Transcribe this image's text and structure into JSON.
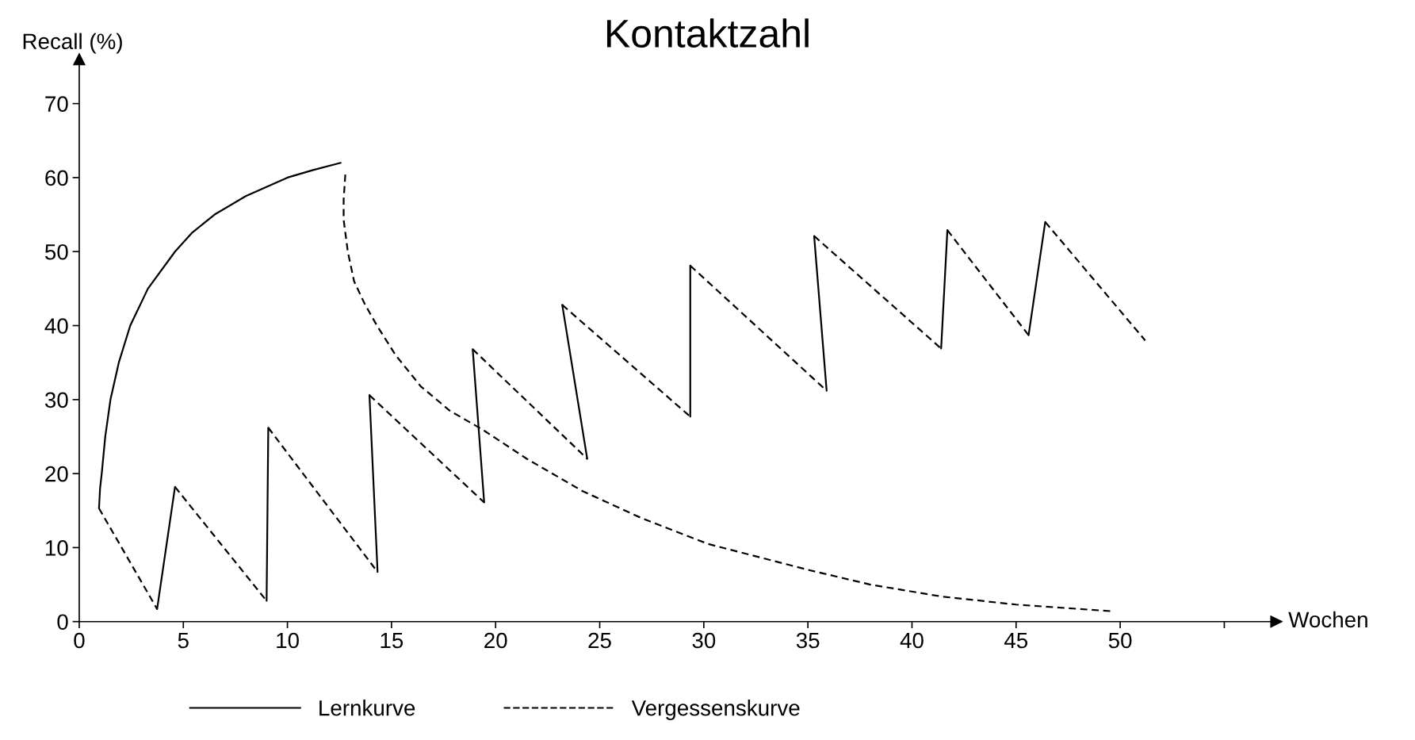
{
  "chart_data": {
    "type": "line",
    "title": "Kontaktzahl",
    "xlabel": "Wochen",
    "ylabel": "Recall (%)",
    "xlim": [
      0,
      57.5
    ],
    "ylim": [
      0,
      76
    ],
    "xticks": [
      0,
      5,
      10,
      15,
      20,
      25,
      30,
      35,
      40,
      45,
      50,
      {
        "value": 55,
        "label": null
      }
    ],
    "yticks": [
      0,
      10,
      20,
      30,
      40,
      50,
      60,
      70
    ],
    "grid": false,
    "legend": "bottom",
    "marker": "none",
    "series": [
      {
        "name": "Lernkurve",
        "color": "#000000",
        "line_style": "solid",
        "x": [
          0.95,
          1.0,
          1.08,
          1.25,
          1.5,
          1.9,
          2.45,
          3.3,
          4.6,
          5.4,
          6.5,
          8.0,
          10,
          11.2,
          12.56
        ],
        "values": [
          15.3,
          18,
          20,
          25,
          30,
          35,
          40,
          45,
          50,
          52.5,
          55,
          57.5,
          60,
          61,
          62
        ]
      },
      {
        "name": "Vergessenskurve",
        "color": "#000000",
        "line_style": "dashed",
        "x": [
          12.78,
          12.7,
          12.7,
          12.9,
          13.2,
          13.7,
          14.3,
          15.2,
          16.4,
          17.8,
          19.4,
          21.5,
          24.2,
          27,
          30.2,
          35,
          38,
          41.4,
          45,
          49.6
        ],
        "values": [
          60.4,
          57,
          54.3,
          50,
          46,
          43,
          40,
          36,
          31.8,
          28.5,
          25.9,
          22,
          17.6,
          14,
          10.5,
          7,
          5,
          3.4,
          2.3,
          1.4
        ]
      },
      {
        "color": "#000000",
        "line_style": "solid",
        "x": [
          3.74,
          4.6
        ],
        "values": [
          1.7,
          18.2
        ]
      },
      {
        "color": "#000000",
        "line_style": "solid",
        "x": [
          9.0,
          9.08
        ],
        "values": [
          2.8,
          26.2
        ]
      },
      {
        "color": "#000000",
        "line_style": "solid",
        "x": [
          14.33,
          13.94
        ],
        "values": [
          6.7,
          30.6
        ]
      },
      {
        "color": "#000000",
        "line_style": "solid",
        "x": [
          19.45,
          18.9
        ],
        "values": [
          16.1,
          36.8
        ]
      },
      {
        "color": "#000000",
        "line_style": "solid",
        "x": [
          24.4,
          23.2
        ],
        "values": [
          22,
          42.8
        ]
      },
      {
        "color": "#000000",
        "line_style": "solid",
        "x": [
          29.35,
          29.35
        ],
        "values": [
          27.7,
          48.1
        ]
      },
      {
        "color": "#000000",
        "line_style": "solid",
        "x": [
          35.9,
          35.3
        ],
        "values": [
          31.2,
          52.1
        ]
      },
      {
        "color": "#000000",
        "line_style": "solid",
        "x": [
          41.4,
          41.7
        ],
        "values": [
          36.9,
          52.9
        ]
      },
      {
        "color": "#000000",
        "line_style": "solid",
        "x": [
          45.6,
          46.4
        ],
        "values": [
          38.7,
          54
        ]
      },
      {
        "color": "#000000",
        "line_style": "dashed",
        "x": [
          0.95,
          3.74
        ],
        "values": [
          15.3,
          1.7
        ]
      },
      {
        "color": "#000000",
        "line_style": "dashed",
        "x": [
          4.6,
          9.0
        ],
        "values": [
          18.2,
          2.8
        ]
      },
      {
        "color": "#000000",
        "line_style": "dashed",
        "x": [
          9.08,
          14.33
        ],
        "values": [
          26.2,
          6.7
        ]
      },
      {
        "color": "#000000",
        "line_style": "dashed",
        "x": [
          13.94,
          19.45
        ],
        "values": [
          30.6,
          16.1
        ]
      },
      {
        "color": "#000000",
        "line_style": "dashed",
        "x": [
          18.9,
          24.4
        ],
        "values": [
          36.8,
          22
        ]
      },
      {
        "color": "#000000",
        "line_style": "dashed",
        "x": [
          23.2,
          29.35
        ],
        "values": [
          42.8,
          27.7
        ]
      },
      {
        "color": "#000000",
        "line_style": "dashed",
        "x": [
          29.35,
          35.9
        ],
        "values": [
          48.1,
          31.2
        ]
      },
      {
        "color": "#000000",
        "line_style": "dashed",
        "x": [
          35.3,
          41.4
        ],
        "values": [
          52.1,
          36.9
        ]
      },
      {
        "color": "#000000",
        "line_style": "dashed",
        "x": [
          41.7,
          45.6
        ],
        "values": [
          52.9,
          38.7
        ]
      },
      {
        "color": "#000000",
        "line_style": "dashed",
        "x": [
          46.4,
          51.2
        ],
        "values": [
          54,
          38
        ]
      }
    ]
  }
}
